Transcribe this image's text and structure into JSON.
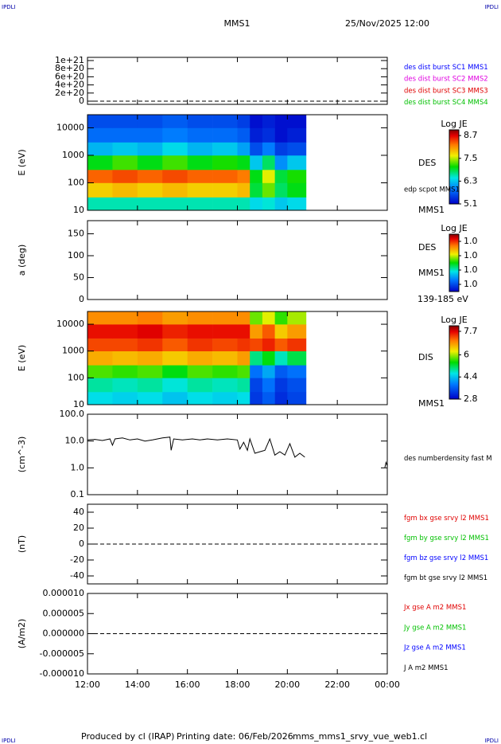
{
  "header": {
    "corner_left": "IPDLI",
    "corner_right": "IPDLI",
    "spacecraft": "MMS1",
    "date": "25/Nov/2025 12:00"
  },
  "footer": {
    "produced": "Produced by cl (IRAP)",
    "printing_date": "Printing date: 06/Feb/2026",
    "file": "mms_mms1_srvy_vue_web1.cl",
    "corner_left": "IPDLI",
    "corner_right": "IPDLI"
  },
  "x_axis": {
    "xlim": [
      12,
      24
    ],
    "xticks": [
      {
        "value": 12,
        "label": "12:00"
      },
      {
        "value": 14,
        "label": "14:00"
      },
      {
        "value": 16,
        "label": "16:00"
      },
      {
        "value": 18,
        "label": "18:00"
      },
      {
        "value": 20,
        "label": "20:00"
      },
      {
        "value": 22,
        "label": "22:00"
      },
      {
        "value": 24,
        "label": "00:00"
      }
    ]
  },
  "chart_data": [
    {
      "type": "line",
      "ylim": [
        0,
        1e+21
      ],
      "zero_line": true,
      "yticks": [
        0,
        {
          "value": 2e+20,
          "label": "2e+20"
        },
        {
          "value": 4e+20,
          "label": "4e+20"
        },
        {
          "value": 6e+20,
          "label": "6e+20"
        },
        {
          "value": 8e+20,
          "label": "8e+20"
        },
        {
          "value": 1e+21,
          "label": "1e+21"
        }
      ],
      "series": [
        {
          "name": "des dist burst SC1 MMS1",
          "color": "#0000ff",
          "x": [],
          "values": []
        },
        {
          "name": "des dist burst SC2 MMS2",
          "color": "#e000e0",
          "x": [],
          "values": []
        },
        {
          "name": "des dist burst SC3 MMS3",
          "color": "#e00000",
          "x": [],
          "values": []
        },
        {
          "name": "des dist burst SC4 MMS4",
          "color": "#00c000",
          "x": [],
          "values": []
        }
      ]
    },
    {
      "type": "heatmap",
      "ylabel": "E (eV)",
      "log_y": true,
      "ylim": [
        10,
        30000
      ],
      "yticks": [
        10,
        100,
        1000,
        10000
      ],
      "xbins": [
        12,
        13,
        14,
        15,
        16,
        17,
        18,
        18.5,
        19,
        19.5,
        20,
        20.75
      ],
      "ybins": [
        10,
        30,
        100,
        300,
        1000,
        3000,
        10000,
        30000
      ],
      "z": [
        [
          6.6,
          6.6,
          6.6,
          6.6,
          6.6,
          6.6,
          6.6,
          6.4,
          6.5,
          6.3,
          6.4
        ],
        [
          7.8,
          7.9,
          7.8,
          7.9,
          7.8,
          7.8,
          7.9,
          6.9,
          7.3,
          6.8,
          7.0
        ],
        [
          8.3,
          8.4,
          8.3,
          8.4,
          8.3,
          8.3,
          8.2,
          7.0,
          7.6,
          6.9,
          7.1
        ],
        [
          7.0,
          7.2,
          7.0,
          7.2,
          7.0,
          7.1,
          7.0,
          6.3,
          6.8,
          6.0,
          6.3
        ],
        [
          6.2,
          6.3,
          6.2,
          6.4,
          6.2,
          6.3,
          6.1,
          5.6,
          5.9,
          5.5,
          5.6
        ],
        [
          5.8,
          5.8,
          5.8,
          5.9,
          5.8,
          5.8,
          5.7,
          5.3,
          5.4,
          5.2,
          5.3
        ],
        [
          5.6,
          5.6,
          5.6,
          5.7,
          5.6,
          5.6,
          5.5,
          5.2,
          5.3,
          5.2,
          5.2
        ]
      ],
      "colorbar_label": "Log JE",
      "zlim": [
        5.1,
        9.0
      ],
      "zticks": [
        8.7,
        7.5,
        6.3,
        5.1
      ],
      "labels": [
        "DES",
        "edp scpot MMS1",
        "MMS1"
      ]
    },
    {
      "type": "heatmap",
      "ylabel": "a (deg)",
      "ylim": [
        0,
        180
      ],
      "yticks": [
        0,
        50,
        100,
        150
      ],
      "colorbar_label": "Log JE",
      "zlim": [
        0.96,
        1.04
      ],
      "zticks": [
        {
          "value": 1.03,
          "label": "1.0"
        },
        {
          "value": 1.01,
          "label": "1.0"
        },
        {
          "value": 0.99,
          "label": "1.0"
        },
        {
          "value": 0.97,
          "label": "1.0"
        }
      ],
      "labels": [
        "DES",
        "MMS1",
        "139-185 eV"
      ]
    },
    {
      "type": "heatmap",
      "ylabel": "E (eV)",
      "log_y": true,
      "ylim": [
        10,
        30000
      ],
      "yticks": [
        10,
        100,
        1000,
        10000
      ],
      "xbins": [
        12,
        13,
        14,
        15,
        16,
        17,
        18,
        18.5,
        19,
        19.5,
        20,
        20.75
      ],
      "ybins": [
        10,
        30,
        100,
        300,
        1000,
        3000,
        10000,
        30000
      ],
      "z": [
        [
          4.6,
          4.5,
          4.6,
          4.4,
          4.6,
          4.5,
          4.6,
          3.3,
          3.6,
          3.2,
          3.4
        ],
        [
          4.9,
          4.8,
          4.9,
          4.7,
          4.9,
          4.8,
          4.9,
          3.4,
          3.8,
          3.3,
          3.5
        ],
        [
          5.7,
          5.6,
          5.7,
          5.4,
          5.7,
          5.6,
          5.7,
          3.8,
          4.2,
          3.6,
          3.8
        ],
        [
          6.7,
          6.6,
          6.7,
          6.5,
          6.7,
          6.6,
          6.8,
          5.0,
          5.4,
          4.8,
          5.2
        ],
        [
          7.3,
          7.3,
          7.4,
          7.2,
          7.4,
          7.3,
          7.4,
          7.3,
          7.5,
          7.2,
          7.4
        ],
        [
          7.6,
          7.6,
          7.7,
          7.5,
          7.6,
          7.6,
          7.6,
          6.8,
          7.2,
          6.5,
          6.8
        ],
        [
          6.9,
          6.9,
          7.0,
          6.8,
          6.9,
          6.9,
          6.9,
          5.8,
          6.2,
          5.6,
          6.0
        ]
      ],
      "colorbar_label": "Log JE",
      "zlim": [
        2.8,
        8.1
      ],
      "zticks": [
        7.7,
        6.0,
        4.4,
        2.8
      ],
      "labels": [
        "DIS",
        "MMS1"
      ]
    },
    {
      "type": "line",
      "ylabel": "(cm^-3)",
      "log_y": true,
      "ylim": [
        0.1,
        100
      ],
      "yticks": [
        {
          "value": 100,
          "label": "100.0"
        },
        {
          "value": 10,
          "label": "10.0"
        },
        {
          "value": 1,
          "label": "1.0"
        },
        0.1
      ],
      "series": [
        {
          "name": "des numberdensity fast M",
          "color": "#000000",
          "x": [
            12,
            12.3,
            12.6,
            12.9,
            13.0,
            13.1,
            13.4,
            13.7,
            14.0,
            14.3,
            14.6,
            15.0,
            15.3,
            15.35,
            15.45,
            15.8,
            16.2,
            16.5,
            16.8,
            17.2,
            17.6,
            18.0,
            18.1,
            18.25,
            18.4,
            18.5,
            18.7,
            18.9,
            19.1,
            19.3,
            19.5,
            19.7,
            19.9,
            20.1,
            20.3,
            20.5,
            20.7,
            22,
            23.9,
            23.95,
            24
          ],
          "values": [
            11,
            11.5,
            10.5,
            12,
            7,
            12,
            13,
            11,
            12,
            10,
            11,
            13,
            14,
            4.5,
            12,
            11,
            12,
            11,
            12,
            11,
            12,
            11,
            5,
            9,
            4.5,
            12,
            3.5,
            4,
            4.5,
            12,
            3,
            4,
            3,
            8,
            2.5,
            3.5,
            2.5,
            null,
            1.0,
            1.6,
            1.2
          ]
        }
      ]
    },
    {
      "type": "line",
      "ylabel": "(nT)",
      "ylim": [
        -50,
        50
      ],
      "zero_line": true,
      "yticks": [
        -40,
        -20,
        0,
        20,
        40
      ],
      "series": [
        {
          "name": "fgm bx gse srvy l2 MMS1",
          "color": "#e00000",
          "x": [],
          "values": []
        },
        {
          "name": "fgm by gse srvy l2 MMS1",
          "color": "#00c000",
          "x": [],
          "values": []
        },
        {
          "name": "fgm bz gse srvy l2 MMS1",
          "color": "#0000ff",
          "x": [],
          "values": []
        },
        {
          "name": "fgm bt gse srvy l2 MMS1",
          "color": "#000000",
          "x": [],
          "values": []
        }
      ]
    },
    {
      "type": "line",
      "ylabel": "(A/m2)",
      "ylim": [
        -1e-05,
        1e-05
      ],
      "zero_line": true,
      "yticks": [
        {
          "value": -1e-05,
          "label": "-0.000010"
        },
        {
          "value": -5e-06,
          "label": "-0.000005"
        },
        {
          "value": 0,
          "label": "0.000000"
        },
        {
          "value": 5e-06,
          "label": "0.000005"
        },
        {
          "value": 1e-05,
          "label": "0.000010"
        }
      ],
      "series": [
        {
          "name": "Jx gse A m2 MMS1",
          "color": "#e00000",
          "x": [],
          "values": []
        },
        {
          "name": "Jy gse A m2 MMS1",
          "color": "#00c000",
          "x": [],
          "values": []
        },
        {
          "name": "Jz gse A m2 MMS1",
          "color": "#0000ff",
          "x": [],
          "values": []
        },
        {
          "name": "J A m2 MMS1",
          "color": "#000000",
          "x": [],
          "values": []
        }
      ]
    }
  ]
}
